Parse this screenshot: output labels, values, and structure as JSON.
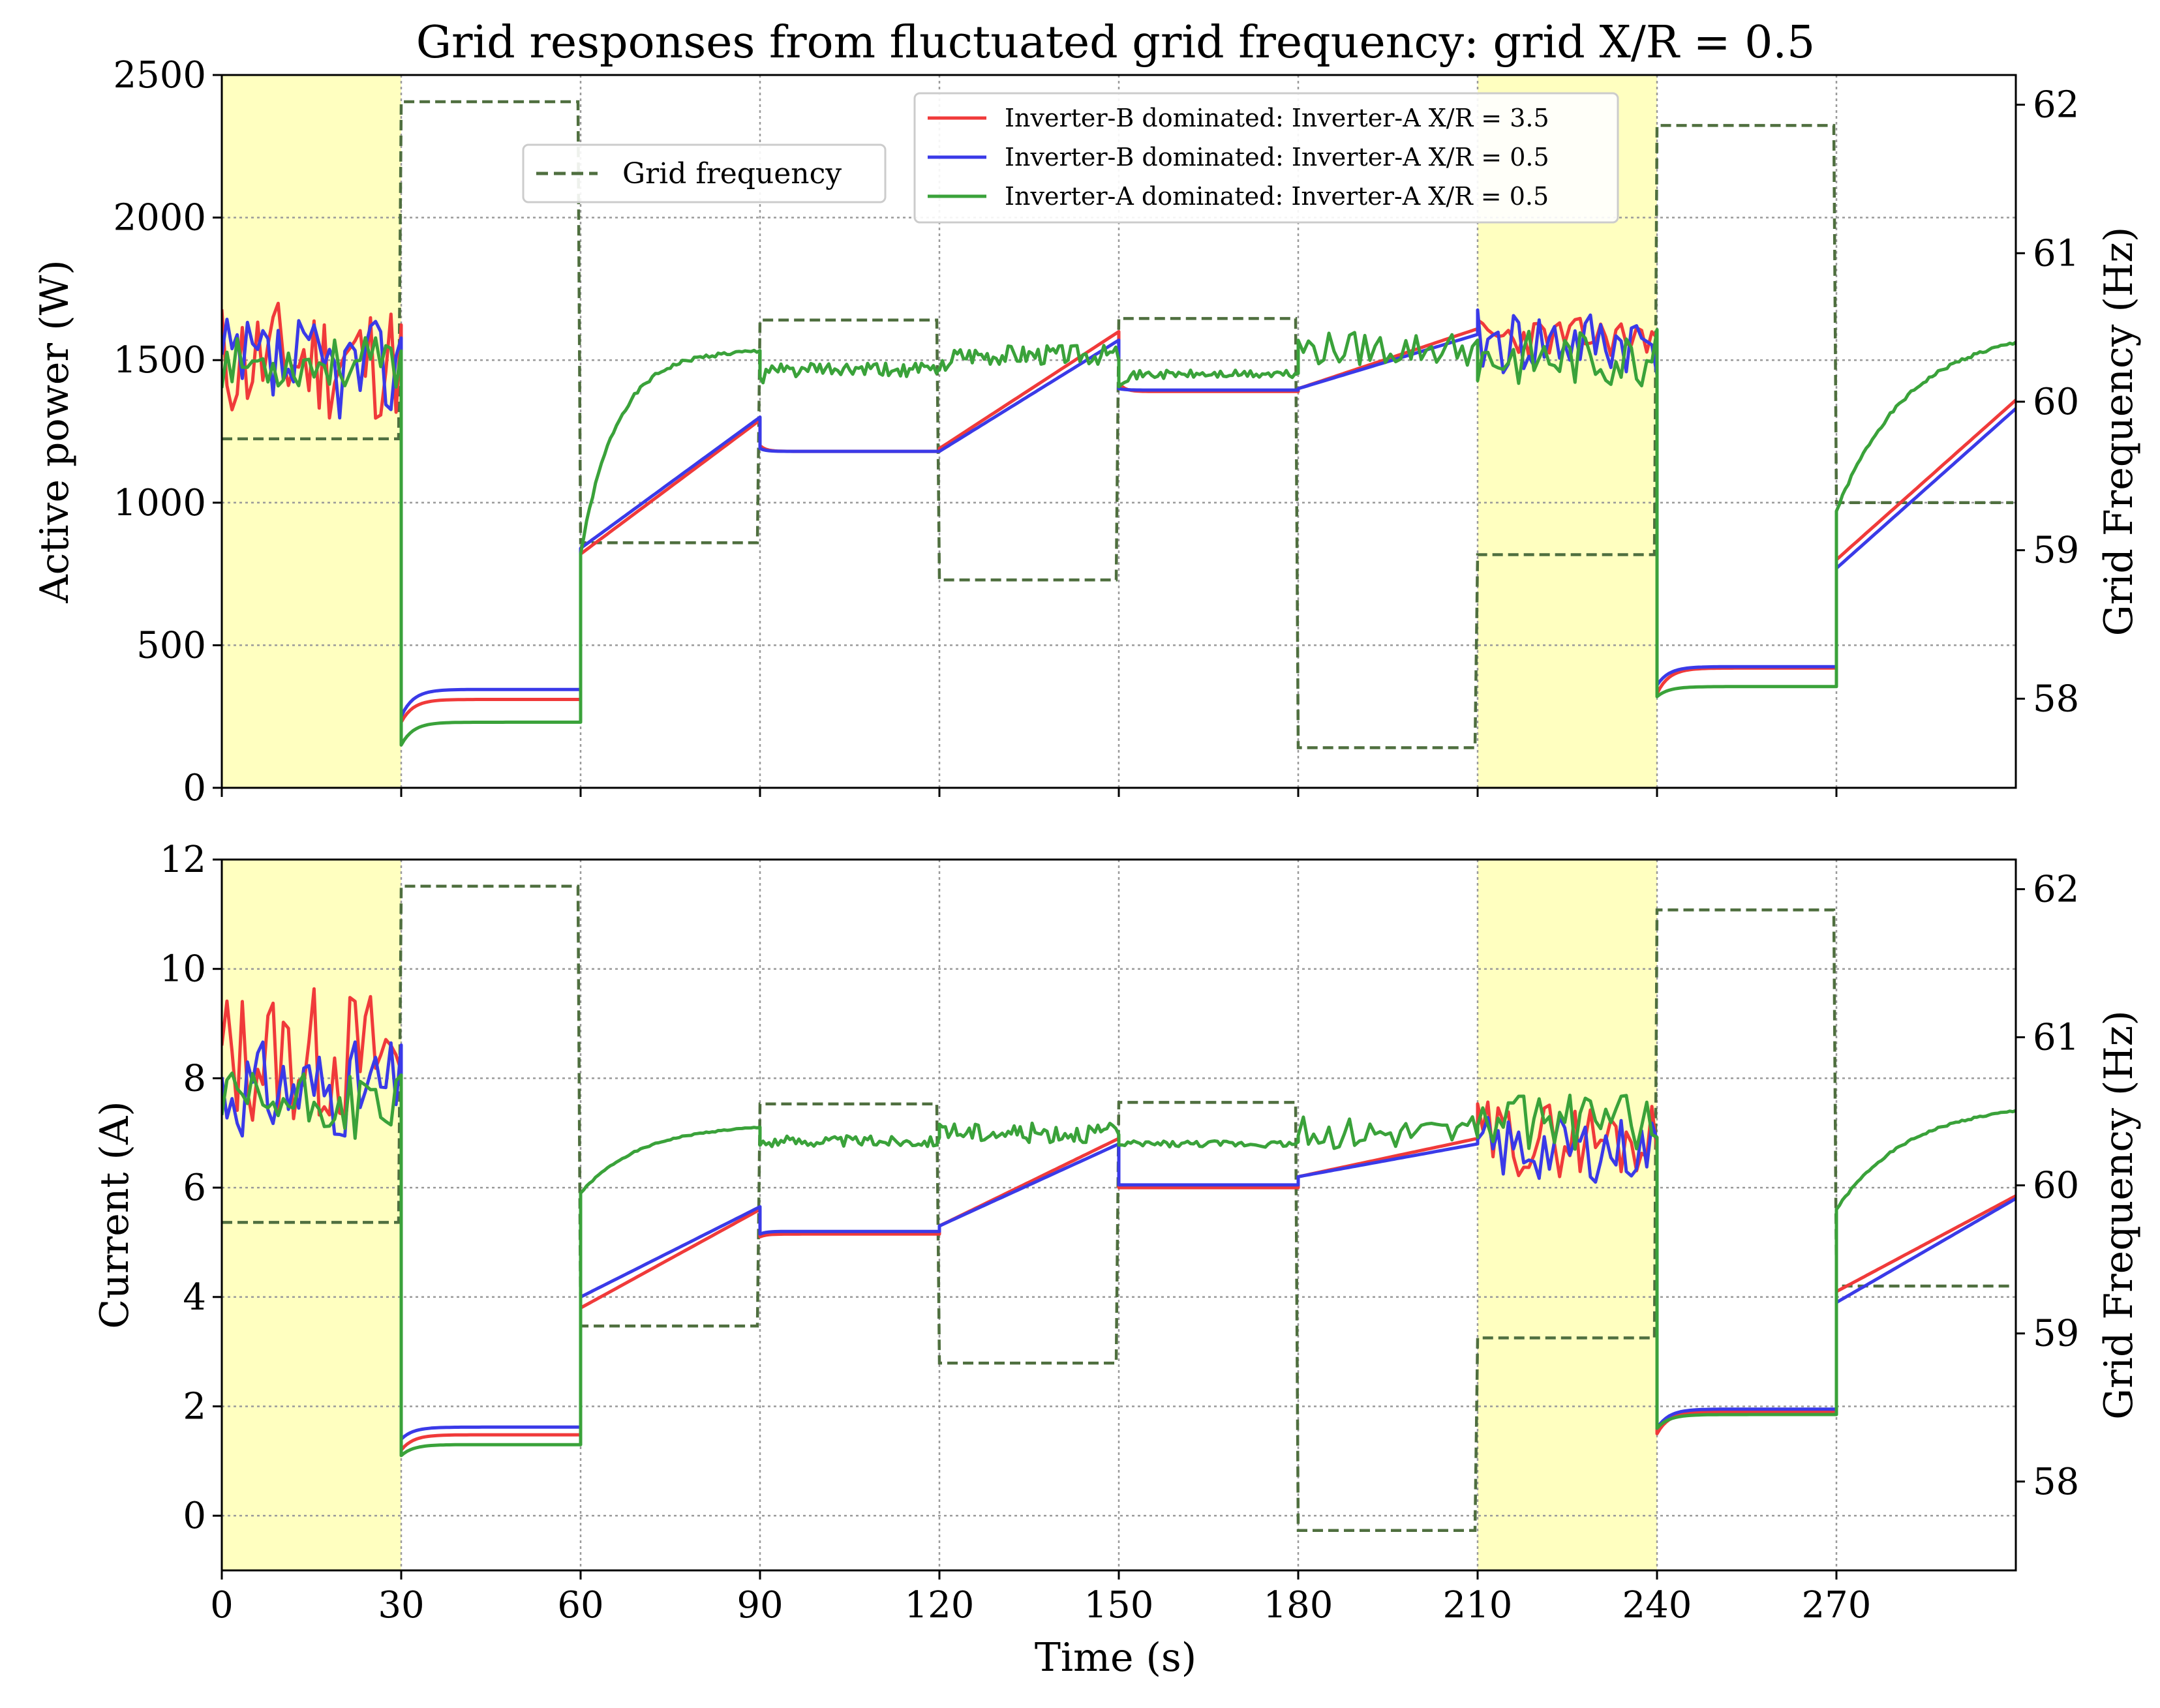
{
  "colors": {
    "red": "#f03a3a",
    "blue": "#3a3ae8",
    "green": "#3aa23a",
    "freq": "#4f6f3f",
    "shade": "#ffffc0",
    "grid": "#9a9a9a"
  },
  "figure": {
    "title": "Grid responses from fluctuated grid frequency: grid X/R = 0.5",
    "xlabel": "Time (s)"
  },
  "legend": {
    "freq_label": "Grid frequency",
    "series_labels": [
      "Inverter-B dominated: Inverter-A X/R = 3.5",
      "Inverter-B dominated: Inverter-A X/R = 0.5",
      "Inverter-A dominated: Inverter-A X/R = 0.5"
    ]
  },
  "chart_data": [
    {
      "type": "line",
      "title": "Grid responses from fluctuated grid frequency: grid X/R = 0.5",
      "xlabel": "Time (s)",
      "ylabel": "Active power (W)",
      "y2label": "Grid Frequency (Hz)",
      "xlim": [
        0,
        300
      ],
      "ylim": [
        0,
        2500
      ],
      "y2lim": [
        57.4,
        62.2
      ],
      "xticks": [
        0,
        30,
        60,
        90,
        120,
        150,
        180,
        210,
        240,
        270
      ],
      "yticks": [
        0,
        500,
        1000,
        1500,
        2000,
        2500
      ],
      "y2ticks": [
        58,
        59,
        60,
        61,
        62
      ],
      "grid": true,
      "shaded_regions": [
        [
          0,
          30
        ],
        [
          210,
          240
        ]
      ],
      "frequency": {
        "name": "Grid frequency",
        "segments": [
          {
            "t0": 0,
            "t1": 30,
            "hz": 59.75
          },
          {
            "t0": 30,
            "t1": 60,
            "hz": 62.02
          },
          {
            "t0": 60,
            "t1": 90,
            "hz": 59.05
          },
          {
            "t0": 90,
            "t1": 120,
            "hz": 60.55
          },
          {
            "t0": 120,
            "t1": 150,
            "hz": 58.8
          },
          {
            "t0": 150,
            "t1": 180,
            "hz": 60.56
          },
          {
            "t0": 180,
            "t1": 210,
            "hz": 57.67
          },
          {
            "t0": 210,
            "t1": 240,
            "hz": 58.97
          },
          {
            "t0": 240,
            "t1": 270,
            "hz": 61.86
          },
          {
            "t0": 270,
            "t1": 300,
            "hz": 59.32
          }
        ]
      },
      "series": [
        {
          "name": "Inverter-B dominated: Inverter-A X/R = 3.5",
          "color": "red",
          "segments": [
            {
              "kind": "noise",
              "t0": 0,
              "t1": 30,
              "base": 1500,
              "amp": 220,
              "seed": 11
            },
            {
              "kind": "flat",
              "t0": 30,
              "t1": 60,
              "start": 230,
              "end": 310,
              "tau": 2
            },
            {
              "kind": "ramp",
              "t0": 60,
              "t1": 90,
              "start": 820,
              "end": 1290
            },
            {
              "kind": "flat",
              "t0": 90,
              "t1": 120,
              "start": 1200,
              "end": 1180,
              "tau": 1
            },
            {
              "kind": "ramp",
              "t0": 120,
              "t1": 150,
              "start": 1190,
              "end": 1600
            },
            {
              "kind": "flat",
              "t0": 150,
              "t1": 180,
              "start": 1420,
              "end": 1390,
              "tau": 1
            },
            {
              "kind": "ramp",
              "t0": 180,
              "t1": 210,
              "start": 1400,
              "end": 1610
            },
            {
              "kind": "noise",
              "t0": 210,
              "t1": 240,
              "base": 1580,
              "amp": 70,
              "seed": 23
            },
            {
              "kind": "flat",
              "t0": 240,
              "t1": 270,
              "start": 330,
              "end": 420,
              "tau": 2
            },
            {
              "kind": "ramp",
              "t0": 270,
              "t1": 300,
              "start": 800,
              "end": 1360
            }
          ]
        },
        {
          "name": "Inverter-B dominated: Inverter-A X/R = 0.5",
          "color": "blue",
          "segments": [
            {
              "kind": "noise",
              "t0": 0,
              "t1": 30,
              "base": 1470,
              "amp": 180,
              "seed": 37
            },
            {
              "kind": "flat",
              "t0": 30,
              "t1": 60,
              "start": 250,
              "end": 345,
              "tau": 2
            },
            {
              "kind": "ramp",
              "t0": 60,
              "t1": 90,
              "start": 840,
              "end": 1300
            },
            {
              "kind": "flat",
              "t0": 90,
              "t1": 120,
              "start": 1190,
              "end": 1180,
              "tau": 1
            },
            {
              "kind": "ramp",
              "t0": 120,
              "t1": 150,
              "start": 1180,
              "end": 1570
            },
            {
              "kind": "flat",
              "t0": 150,
              "t1": 180,
              "start": 1400,
              "end": 1395,
              "tau": 1
            },
            {
              "kind": "ramp",
              "t0": 180,
              "t1": 210,
              "start": 1400,
              "end": 1590
            },
            {
              "kind": "noise",
              "t0": 210,
              "t1": 240,
              "base": 1560,
              "amp": 120,
              "seed": 41
            },
            {
              "kind": "flat",
              "t0": 240,
              "t1": 270,
              "start": 360,
              "end": 425,
              "tau": 2
            },
            {
              "kind": "ramp",
              "t0": 270,
              "t1": 300,
              "start": 770,
              "end": 1330
            }
          ]
        },
        {
          "name": "Inverter-A dominated: Inverter-A X/R = 0.5",
          "color": "green",
          "segments": [
            {
              "kind": "noise",
              "t0": 0,
              "t1": 30,
              "base": 1490,
              "amp": 90,
              "seed": 53
            },
            {
              "kind": "flat",
              "t0": 30,
              "t1": 60,
              "start": 150,
              "end": 230,
              "tau": 2
            },
            {
              "kind": "approach",
              "t0": 60,
              "t1": 90,
              "start": 820,
              "end": 1530,
              "tau": 6
            },
            {
              "kind": "wiggle",
              "t0": 90,
              "t1": 120,
              "start": 1430,
              "end": 1465,
              "amp": 25,
              "seed": 61
            },
            {
              "kind": "wiggle",
              "t0": 120,
              "t1": 150,
              "start": 1450,
              "end": 1520,
              "amp": 35,
              "seed": 67
            },
            {
              "kind": "wiggle",
              "t0": 150,
              "t1": 180,
              "start": 1420,
              "end": 1450,
              "amp": 15,
              "seed": 71
            },
            {
              "kind": "noise",
              "t0": 180,
              "t1": 210,
              "base": 1540,
              "amp": 60,
              "seed": 79
            },
            {
              "kind": "noise",
              "t0": 210,
              "t1": 240,
              "base": 1510,
              "amp": 100,
              "seed": 83
            },
            {
              "kind": "flat",
              "t0": 240,
              "t1": 270,
              "start": 320,
              "end": 355,
              "tau": 2
            },
            {
              "kind": "approach",
              "t0": 270,
              "t1": 300,
              "start": 970,
              "end": 1560,
              "tau": 12
            }
          ]
        }
      ]
    },
    {
      "type": "line",
      "xlabel": "Time (s)",
      "ylabel": "Current (A)",
      "y2label": "Grid Frequency (Hz)",
      "xlim": [
        0,
        300
      ],
      "ylim": [
        -1,
        12
      ],
      "y2lim": [
        57.4,
        62.2
      ],
      "xticks": [
        0,
        30,
        60,
        90,
        120,
        150,
        180,
        210,
        240,
        270
      ],
      "yticks": [
        0,
        2,
        4,
        6,
        8,
        10,
        12
      ],
      "y2ticks": [
        58,
        59,
        60,
        61,
        62
      ],
      "grid": true,
      "shaded_regions": [
        [
          0,
          30
        ],
        [
          210,
          240
        ]
      ],
      "frequency": {
        "name": "Grid frequency",
        "segments": [
          {
            "t0": 0,
            "t1": 30,
            "hz": 59.75
          },
          {
            "t0": 30,
            "t1": 60,
            "hz": 62.02
          },
          {
            "t0": 60,
            "t1": 90,
            "hz": 59.05
          },
          {
            "t0": 90,
            "t1": 120,
            "hz": 60.55
          },
          {
            "t0": 120,
            "t1": 150,
            "hz": 58.8
          },
          {
            "t0": 150,
            "t1": 180,
            "hz": 60.56
          },
          {
            "t0": 180,
            "t1": 210,
            "hz": 57.67
          },
          {
            "t0": 210,
            "t1": 240,
            "hz": 58.97
          },
          {
            "t0": 240,
            "t1": 270,
            "hz": 61.86
          },
          {
            "t0": 270,
            "t1": 300,
            "hz": 59.32
          }
        ]
      },
      "series": [
        {
          "name": "Inverter-B dominated: Inverter-A X/R = 3.5",
          "color": "red",
          "segments": [
            {
              "kind": "noise",
              "t0": 0,
              "t1": 30,
              "base": 8.4,
              "amp": 1.3,
              "seed": 13
            },
            {
              "kind": "flat",
              "t0": 30,
              "t1": 60,
              "start": 1.2,
              "end": 1.48,
              "tau": 2
            },
            {
              "kind": "ramp",
              "t0": 60,
              "t1": 90,
              "start": 3.8,
              "end": 5.6
            },
            {
              "kind": "flat",
              "t0": 90,
              "t1": 120,
              "start": 5.1,
              "end": 5.15,
              "tau": 1
            },
            {
              "kind": "ramp",
              "t0": 120,
              "t1": 150,
              "start": 5.3,
              "end": 6.9
            },
            {
              "kind": "flat",
              "t0": 150,
              "t1": 180,
              "start": 6.0,
              "end": 6.0,
              "tau": 1
            },
            {
              "kind": "ramp",
              "t0": 180,
              "t1": 210,
              "start": 6.2,
              "end": 6.9
            },
            {
              "kind": "noise",
              "t0": 210,
              "t1": 240,
              "base": 6.9,
              "amp": 0.7,
              "seed": 29
            },
            {
              "kind": "flat",
              "t0": 240,
              "t1": 270,
              "start": 1.5,
              "end": 1.9,
              "tau": 2
            },
            {
              "kind": "ramp",
              "t0": 270,
              "t1": 300,
              "start": 4.1,
              "end": 5.85
            }
          ]
        },
        {
          "name": "Inverter-B dominated: Inverter-A X/R = 0.5",
          "color": "blue",
          "segments": [
            {
              "kind": "noise",
              "t0": 0,
              "t1": 30,
              "base": 7.8,
              "amp": 0.9,
              "seed": 31
            },
            {
              "kind": "flat",
              "t0": 30,
              "t1": 60,
              "start": 1.4,
              "end": 1.62,
              "tau": 2
            },
            {
              "kind": "ramp",
              "t0": 60,
              "t1": 90,
              "start": 4.0,
              "end": 5.65
            },
            {
              "kind": "flat",
              "t0": 90,
              "t1": 120,
              "start": 5.15,
              "end": 5.2,
              "tau": 1
            },
            {
              "kind": "ramp",
              "t0": 120,
              "t1": 150,
              "start": 5.3,
              "end": 6.8
            },
            {
              "kind": "flat",
              "t0": 150,
              "t1": 180,
              "start": 6.05,
              "end": 6.05,
              "tau": 1
            },
            {
              "kind": "ramp",
              "t0": 180,
              "t1": 210,
              "start": 6.2,
              "end": 6.8
            },
            {
              "kind": "noise",
              "t0": 210,
              "t1": 240,
              "base": 6.7,
              "amp": 0.6,
              "seed": 43
            },
            {
              "kind": "flat",
              "t0": 240,
              "t1": 270,
              "start": 1.6,
              "end": 1.95,
              "tau": 2
            },
            {
              "kind": "ramp",
              "t0": 270,
              "t1": 300,
              "start": 3.9,
              "end": 5.8
            }
          ]
        },
        {
          "name": "Inverter-A dominated: Inverter-A X/R = 0.5",
          "color": "green",
          "segments": [
            {
              "kind": "noise",
              "t0": 0,
              "t1": 30,
              "base": 7.5,
              "amp": 0.6,
              "seed": 57
            },
            {
              "kind": "flat",
              "t0": 30,
              "t1": 60,
              "start": 1.1,
              "end": 1.3,
              "tau": 2
            },
            {
              "kind": "approach",
              "t0": 60,
              "t1": 90,
              "start": 5.9,
              "end": 7.1,
              "tau": 10
            },
            {
              "kind": "wiggle",
              "t0": 90,
              "t1": 120,
              "start": 6.8,
              "end": 6.85,
              "amp": 0.1,
              "seed": 63
            },
            {
              "kind": "wiggle",
              "t0": 120,
              "t1": 150,
              "start": 7.2,
              "end": 7.0,
              "amp": 0.18,
              "seed": 69
            },
            {
              "kind": "wiggle",
              "t0": 150,
              "t1": 180,
              "start": 6.75,
              "end": 6.8,
              "amp": 0.06,
              "seed": 73
            },
            {
              "kind": "noise",
              "t0": 180,
              "t1": 210,
              "base": 7.0,
              "amp": 0.3,
              "seed": 81
            },
            {
              "kind": "noise",
              "t0": 210,
              "t1": 240,
              "base": 7.2,
              "amp": 0.5,
              "seed": 87
            },
            {
              "kind": "flat",
              "t0": 240,
              "t1": 270,
              "start": 1.6,
              "end": 1.85,
              "tau": 2
            },
            {
              "kind": "approach",
              "t0": 270,
              "t1": 300,
              "start": 5.6,
              "end": 7.4,
              "tau": 12
            }
          ]
        }
      ]
    }
  ]
}
